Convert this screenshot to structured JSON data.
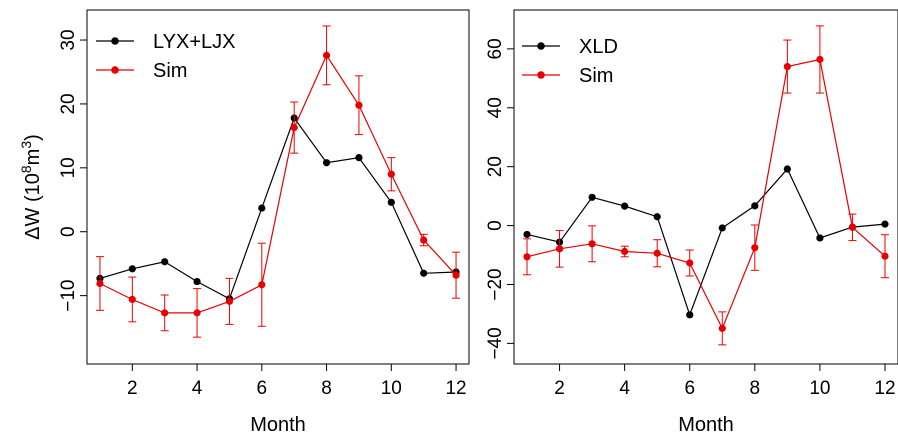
{
  "chart_data": [
    {
      "type": "line",
      "xlabel": "Month",
      "ylabel_main": "ΔW (10",
      "ylabel_sup1": "8",
      "ylabel_mid": "m",
      "ylabel_sup2": "3",
      "ylabel_end": ")",
      "xlim": [
        0.6,
        12.4
      ],
      "ylim": [
        -20.7,
        34.7
      ],
      "xticks": [
        2,
        4,
        6,
        8,
        10,
        12
      ],
      "yticks": [
        -10,
        0,
        10,
        20,
        30
      ],
      "xtick_labels": [
        "2",
        "4",
        "6",
        "8",
        "10",
        "12"
      ],
      "ytick_labels": [
        "−10",
        "0",
        "10",
        "20",
        "30"
      ],
      "grid": false,
      "legend_position": "top-left",
      "series": [
        {
          "name": "LYX+LJX",
          "color": "#000000",
          "x": [
            1,
            2,
            3,
            4,
            5,
            6,
            7,
            8,
            9,
            10,
            11,
            12
          ],
          "y": [
            -7.3,
            -5.8,
            -4.7,
            -7.8,
            -10.5,
            3.7,
            17.8,
            10.8,
            11.6,
            4.6,
            -6.5,
            -6.3
          ]
        },
        {
          "name": "Sim",
          "color": "#e80000",
          "x": [
            1,
            2,
            3,
            4,
            5,
            6,
            7,
            8,
            9,
            10,
            11,
            12
          ],
          "y": [
            -8.1,
            -10.6,
            -12.7,
            -12.7,
            -10.9,
            -8.3,
            16.3,
            27.6,
            19.8,
            9.0,
            -1.3,
            -6.8
          ],
          "err": [
            4.2,
            3.5,
            2.8,
            3.8,
            3.6,
            6.5,
            4.0,
            4.6,
            4.6,
            2.6,
            0.9,
            3.6
          ]
        }
      ]
    },
    {
      "type": "line",
      "xlabel": "Month",
      "xlim": [
        0.6,
        12.4
      ],
      "ylim": [
        -47.0,
        73.2
      ],
      "xticks": [
        2,
        4,
        6,
        8,
        10,
        12
      ],
      "yticks": [
        -40,
        -20,
        0,
        20,
        40,
        60
      ],
      "xtick_labels": [
        "2",
        "4",
        "6",
        "8",
        "10",
        "12"
      ],
      "ytick_labels": [
        "−40",
        "−20",
        "0",
        "20",
        "40",
        "60"
      ],
      "grid": false,
      "legend_position": "top-left",
      "series": [
        {
          "name": "XLD",
          "color": "#000000",
          "x": [
            1,
            2,
            3,
            4,
            5,
            6,
            7,
            8,
            9,
            10,
            11,
            12
          ],
          "y": [
            -3.0,
            -5.6,
            9.6,
            6.6,
            3.0,
            -30.3,
            -0.8,
            6.7,
            19.2,
            -4.2,
            -0.5,
            0.5
          ]
        },
        {
          "name": "Sim",
          "color": "#e80000",
          "x": [
            1,
            2,
            3,
            4,
            5,
            6,
            7,
            8,
            9,
            10,
            11,
            12
          ],
          "y": [
            -10.6,
            -7.9,
            -6.2,
            -8.8,
            -9.4,
            -12.7,
            -34.9,
            -7.5,
            54.0,
            56.4,
            -0.6,
            -10.4
          ],
          "err": [
            6.1,
            6.2,
            6.1,
            1.8,
            4.6,
            4.4,
            5.6,
            7.7,
            9.0,
            11.4,
            4.5,
            7.3
          ]
        }
      ]
    }
  ]
}
